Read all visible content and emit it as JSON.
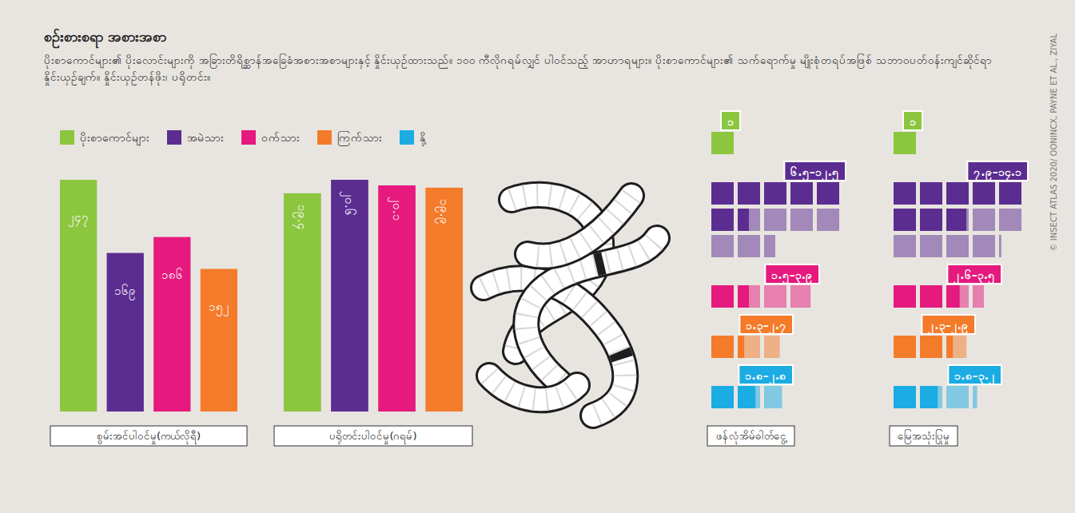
{
  "title": "စဉ်းစားစရာ အစားအစာ",
  "subtitle": "ပိုးစာကောင်များ၏ ပိုးလောင်းများကို အခြားတိရိစ္ဆာန်အခြေခံအစားအစာများနှင့် နှိုင်းယှဉ်ထားသည်။ ၁၀၀ ကီလိုဂရမ်လျှင် ပါဝင်သည့် အာဟာရများ။ ပိုးစာကောင်များ၏ သက်ရောက်မှု မျိုးစုံတရပ်အဖြစ် သဘာဝပတ်ဝန်းကျင်ဆိုင်ရာ နှိုင်းယှဉ်ချက်။ နှိုင်းယှဉ်တန်ဖိုး၊ ပရိုတင်း။",
  "source": "© INSECT ATLAS 2020/ OONINCX, PAYNE ET AL., ZIYAL",
  "chart_data": [
    {
      "type": "bar",
      "x_label": "စွမ်းအင်ပါဝင်မှု(ကယ်လိုရီ)",
      "categories": [
        "ပိုးစာကောင်များ",
        "အမဲသား",
        "ဝက်သား",
        "ကြက်သား"
      ],
      "colors": [
        "#8cc63f",
        "#5c2d91",
        "#e6197e",
        "#f47b2a"
      ],
      "values": [
        247,
        169,
        186,
        152
      ],
      "value_labels": [
        "၂၄၇",
        "၁၆၉",
        "၁၈၆",
        "၁၅၂"
      ],
      "ylim": [
        0,
        247
      ],
      "data_labels": true,
      "tick_labels": false
    },
    {
      "type": "bar",
      "x_label": "ပရိုတင်းပါဝင်မှု(ဂရမ်)",
      "categories": [
        "ပိုးစာကောင်များ",
        "အမဲသား",
        "ဝက်သား",
        "ကြက်သား"
      ],
      "colors": [
        "#8cc63f",
        "#5c2d91",
        "#e6197e",
        "#f47b2a"
      ],
      "values": [
        19.4,
        20.6,
        20.1,
        19.9
      ],
      "value_labels": [
        "၁၉.၄",
        "၂၀.၆",
        "၂၀.၁",
        "၁၉.၉"
      ],
      "ylim": [
        0,
        20.6
      ],
      "data_labels": true,
      "tick_labels": false
    },
    {
      "type": "waffle",
      "x_label": "ဖန်လုံအိမ်ဓါတ်ငွေ့",
      "categories": [
        "ပိုးစာကောင်များ",
        "အမဲသား",
        "ဝက်သား",
        "ကြက်သား",
        "နို့"
      ],
      "colors": [
        "#8cc63f",
        "#5c2d91",
        "#e6197e",
        "#f47b2a",
        "#1aace3"
      ],
      "values": [
        1,
        6.5,
        1.5,
        1.3,
        1.8
      ],
      "values_high": [
        null,
        12.5,
        3.9,
        2.7,
        2.8
      ],
      "value_labels": [
        "၁",
        "၆.၅–၁၂.၅",
        "၁.၅–၃.၉",
        "၁.၃–၂.၇",
        "၁.၈–၂.၈"
      ],
      "data_labels": true,
      "tick_labels": false,
      "legend": "top-left"
    },
    {
      "type": "waffle",
      "x_label": "မြေအသုံးပြုမှု",
      "categories": [
        "ပိုးစာကောင်များ",
        "အမဲသား",
        "ဝက်သား",
        "ကြက်သား",
        "နို့"
      ],
      "colors": [
        "#8cc63f",
        "#5c2d91",
        "#e6197e",
        "#f47b2a",
        "#1aace3"
      ],
      "values": [
        1,
        7.9,
        2.6,
        2.3,
        1.8
      ],
      "values_high": [
        null,
        14.1,
        3.5,
        2.9,
        3.2
      ],
      "value_labels": [
        "၁",
        "၇.၉–၁၄.၁",
        "၂.၆–၃.၅",
        "၂.၃–၂.၉",
        "၁.၈–၃.၂"
      ],
      "data_labels": true,
      "tick_labels": false
    }
  ]
}
